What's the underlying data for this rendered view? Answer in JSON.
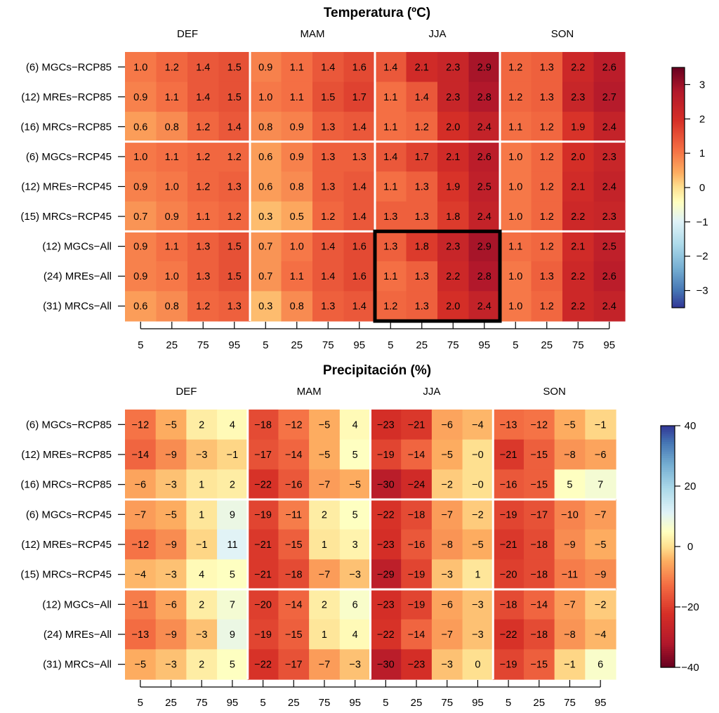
{
  "chart_data": [
    {
      "type": "heatmap",
      "title": "Temperatura (ºC)",
      "seasons": [
        "DEF",
        "MAM",
        "JJA",
        "SON"
      ],
      "percentiles": [
        "5",
        "25",
        "75",
        "95"
      ],
      "rows": [
        "(6) MGCs−RCP85",
        "(12) MREs−RCP85",
        "(16) MRCs−RCP85",
        "(6) MGCs−RCP45",
        "(12) MREs−RCP45",
        "(15) MRCs−RCP45",
        "(12) MGCs−All",
        "(24) MREs−All",
        "(31) MRCs−All"
      ],
      "values": [
        [
          1.0,
          1.2,
          1.4,
          1.5,
          0.9,
          1.1,
          1.4,
          1.6,
          1.4,
          2.1,
          2.3,
          2.9,
          1.2,
          1.3,
          2.2,
          2.6
        ],
        [
          0.9,
          1.1,
          1.4,
          1.5,
          1.0,
          1.1,
          1.5,
          1.7,
          1.1,
          1.4,
          2.3,
          2.8,
          1.2,
          1.3,
          2.3,
          2.7
        ],
        [
          0.6,
          0.8,
          1.2,
          1.4,
          0.8,
          0.9,
          1.3,
          1.4,
          1.1,
          1.2,
          2.0,
          2.4,
          1.1,
          1.2,
          1.9,
          2.4
        ],
        [
          1.0,
          1.1,
          1.2,
          1.2,
          0.6,
          0.9,
          1.3,
          1.3,
          1.4,
          1.7,
          2.1,
          2.6,
          1.0,
          1.2,
          2.0,
          2.3
        ],
        [
          0.9,
          1.0,
          1.2,
          1.3,
          0.6,
          0.8,
          1.3,
          1.4,
          1.1,
          1.3,
          1.9,
          2.5,
          1.0,
          1.2,
          2.1,
          2.4
        ],
        [
          0.7,
          0.9,
          1.1,
          1.2,
          0.3,
          0.5,
          1.2,
          1.4,
          1.3,
          1.3,
          1.8,
          2.4,
          1.0,
          1.2,
          2.2,
          2.3
        ],
        [
          0.9,
          1.1,
          1.3,
          1.5,
          0.7,
          1.0,
          1.4,
          1.6,
          1.3,
          1.8,
          2.3,
          2.9,
          1.1,
          1.2,
          2.1,
          2.5
        ],
        [
          0.9,
          1.0,
          1.3,
          1.5,
          0.7,
          1.1,
          1.4,
          1.6,
          1.1,
          1.3,
          2.2,
          2.8,
          1.0,
          1.3,
          2.2,
          2.6
        ],
        [
          0.6,
          0.8,
          1.2,
          1.3,
          0.3,
          0.8,
          1.3,
          1.4,
          1.2,
          1.3,
          2.0,
          2.4,
          1.0,
          1.2,
          2.2,
          2.4
        ]
      ],
      "decimals": 1,
      "highlight": {
        "season": "JJA",
        "rows": [
          6,
          8
        ]
      },
      "colorbar": {
        "range": [
          -3.5,
          3.5
        ],
        "ticks": [
          3,
          2,
          1,
          0,
          -1,
          -2,
          -3
        ]
      }
    },
    {
      "type": "heatmap",
      "title": "Precipitación (%)",
      "seasons": [
        "DEF",
        "MAM",
        "JJA",
        "SON"
      ],
      "percentiles": [
        "5",
        "25",
        "75",
        "95"
      ],
      "rows": [
        "(6) MGCs−RCP85",
        "(12) MREs−RCP85",
        "(16) MRCs−RCP85",
        "(6) MGCs−RCP45",
        "(12) MREs−RCP45",
        "(15) MRCs−RCP45",
        "(12) MGCs−All",
        "(24) MREs−All",
        "(31) MRCs−All"
      ],
      "values": [
        [
          -12,
          -5,
          2,
          4,
          -18,
          -12,
          -5,
          4,
          -23,
          -21,
          -6,
          -4,
          -13,
          -12,
          -5,
          -1
        ],
        [
          -14,
          -9,
          -3,
          -1,
          -17,
          -14,
          -5,
          5,
          -19,
          -14,
          -5,
          "-0",
          -21,
          -15,
          -8,
          -6
        ],
        [
          -6,
          -3,
          1,
          2,
          -22,
          -16,
          -7,
          -5,
          -30,
          -24,
          -2,
          "-0",
          -16,
          -15,
          5,
          7
        ],
        [
          -7,
          -5,
          1,
          9,
          -19,
          -11,
          2,
          5,
          -22,
          -18,
          -7,
          -2,
          -19,
          -17,
          -10,
          -7
        ],
        [
          -12,
          -9,
          -1,
          11,
          -21,
          -15,
          1,
          3,
          -23,
          -16,
          -8,
          -5,
          -21,
          -18,
          -9,
          -5
        ],
        [
          -4,
          -3,
          4,
          5,
          -21,
          -18,
          -7,
          -3,
          -29,
          -19,
          -3,
          1,
          -20,
          -18,
          -11,
          -9
        ],
        [
          -11,
          -6,
          2,
          7,
          -20,
          -14,
          2,
          6,
          -23,
          -19,
          -6,
          -3,
          -18,
          -14,
          -7,
          -2
        ],
        [
          -13,
          -9,
          -3,
          9,
          -19,
          -15,
          1,
          4,
          -22,
          -14,
          -7,
          -3,
          -22,
          -18,
          -8,
          -4
        ],
        [
          -5,
          -3,
          2,
          5,
          -22,
          -17,
          -7,
          -3,
          -30,
          -23,
          -3,
          0,
          -19,
          -15,
          -1,
          6
        ]
      ],
      "decimals": 0,
      "colorbar": {
        "range": [
          -40,
          40
        ],
        "ticks": [
          40,
          20,
          0,
          -20,
          -40
        ]
      }
    }
  ]
}
